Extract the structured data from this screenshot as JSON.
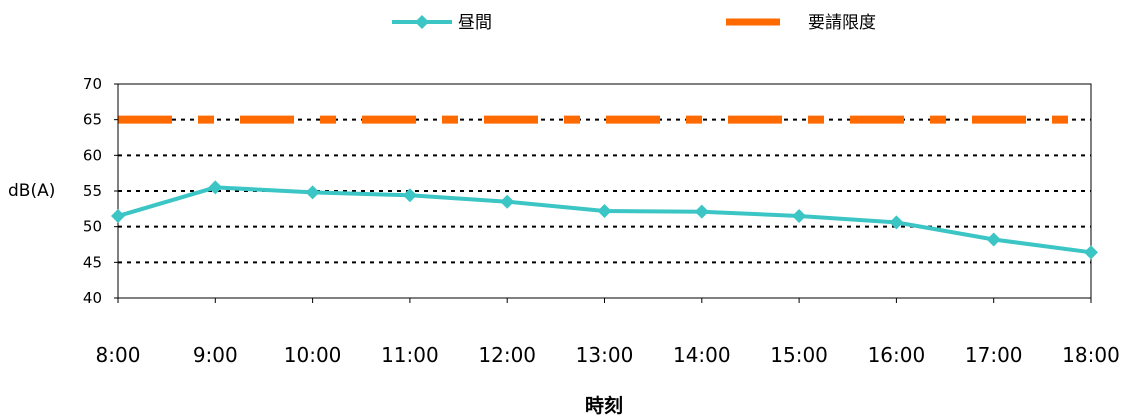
{
  "chart_data": {
    "type": "line",
    "categories": [
      "8:00",
      "9:00",
      "10:00",
      "11:00",
      "12:00",
      "13:00",
      "14:00",
      "15:00",
      "16:00",
      "17:00",
      "18:00"
    ],
    "series": [
      {
        "name": "昼間",
        "values": [
          51.5,
          55.5,
          54.8,
          54.4,
          53.5,
          52.2,
          52.1,
          51.5,
          50.6,
          48.2,
          46.4
        ],
        "color": "#3cc5c5",
        "marker": "diamond"
      }
    ],
    "reference_line": {
      "name": "要請限度",
      "value": 65,
      "color": "#ff6a00",
      "style": "dash-dot"
    },
    "xlabel": "時刻",
    "ylabel": "dB(A)",
    "ylim": [
      40,
      70
    ],
    "yticks": [
      40,
      45,
      50,
      55,
      60,
      65,
      70
    ],
    "grid": "horizontal dotted",
    "legend": "top"
  }
}
